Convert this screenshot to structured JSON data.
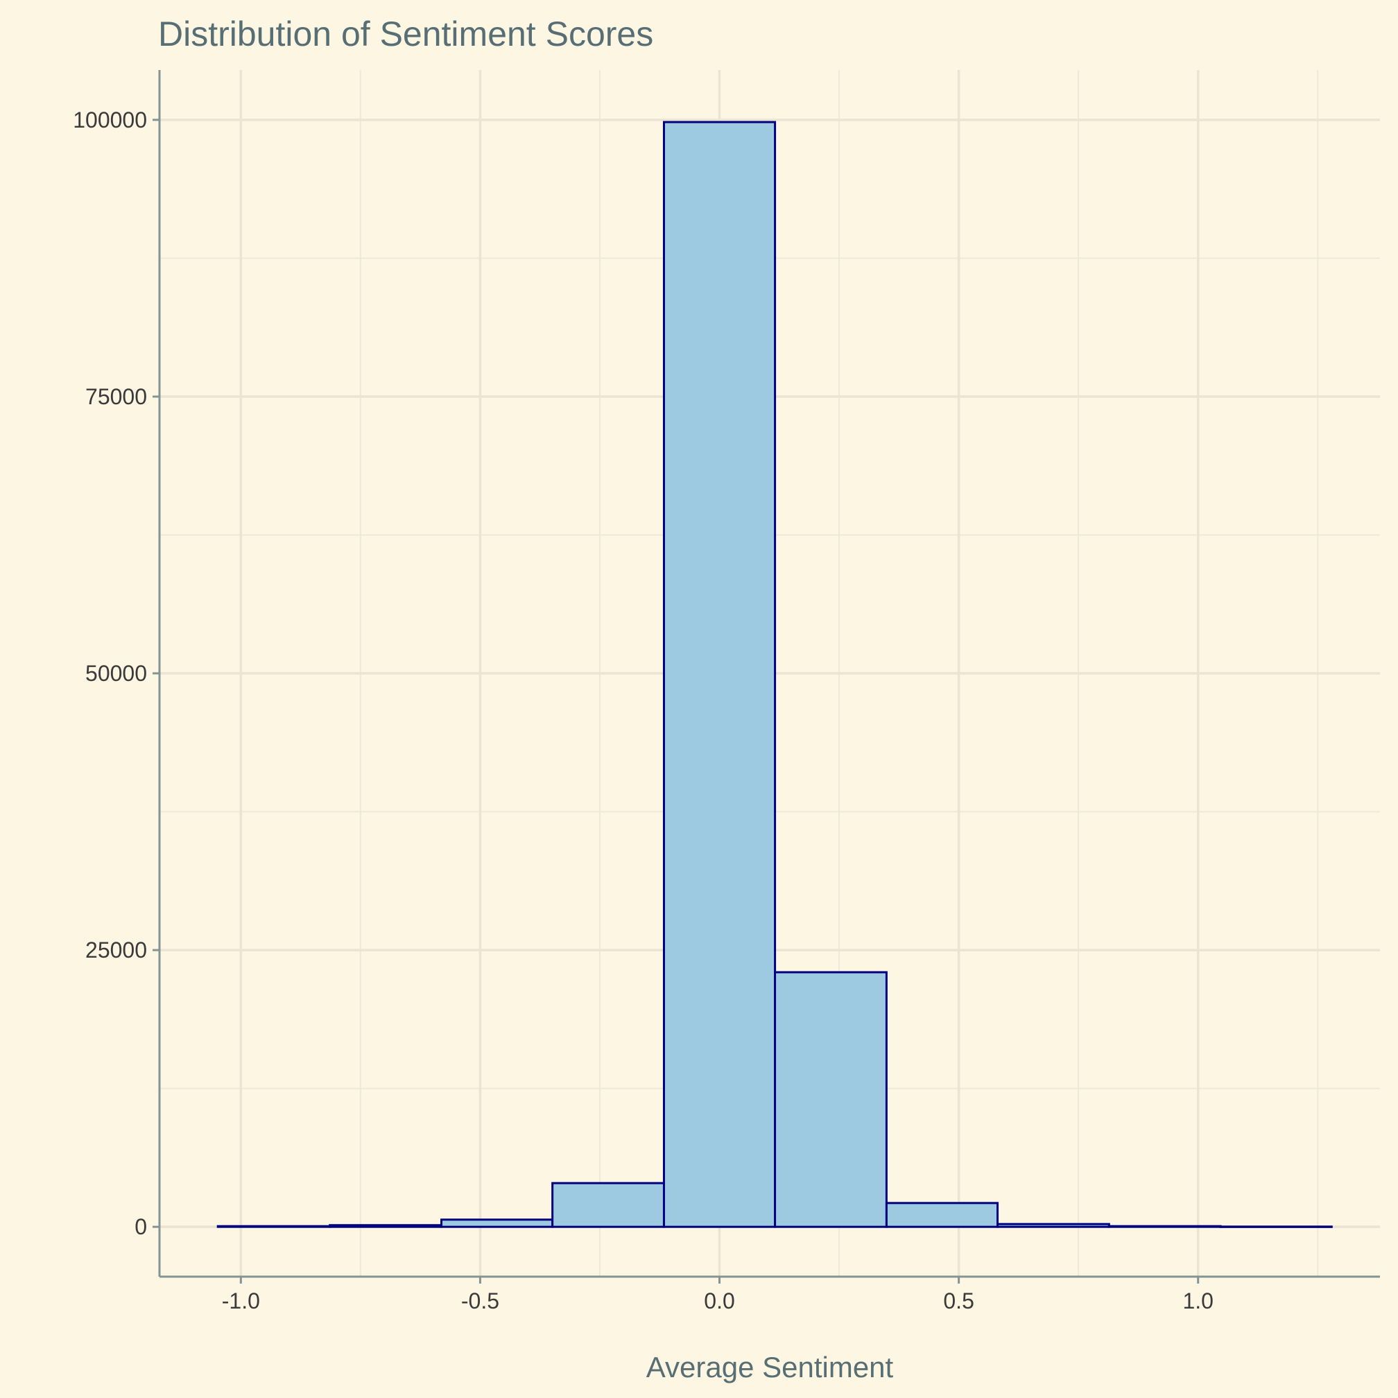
{
  "chart_data": {
    "type": "bar",
    "title": "Distribution of Sentiment Scores",
    "xlabel": "Average Sentiment",
    "ylabel": "",
    "xlim": [
      -1.17,
      1.38
    ],
    "ylim": [
      -4500,
      104500
    ],
    "x_ticks": [
      -1.0,
      -0.5,
      0.0,
      0.5,
      1.0
    ],
    "x_tick_labels": [
      "-1.0",
      "-0.5",
      "0.0",
      "0.5",
      "1.0"
    ],
    "y_ticks": [
      0,
      25000,
      50000,
      75000,
      100000
    ],
    "y_tick_labels": [
      "0",
      "25000",
      "50000",
      "75000",
      "100000"
    ],
    "grid": true,
    "bins": [
      {
        "x_start": -1.048,
        "x_end": -0.814,
        "value": 60
      },
      {
        "x_start": -0.814,
        "x_end": -0.581,
        "value": 150
      },
      {
        "x_start": -0.581,
        "x_end": -0.349,
        "value": 650
      },
      {
        "x_start": -0.349,
        "x_end": -0.116,
        "value": 3950
      },
      {
        "x_start": -0.116,
        "x_end": 0.116,
        "value": 99800
      },
      {
        "x_start": 0.116,
        "x_end": 0.349,
        "value": 23000
      },
      {
        "x_start": 0.349,
        "x_end": 0.581,
        "value": 2150
      },
      {
        "x_start": 0.581,
        "x_end": 0.814,
        "value": 250
      },
      {
        "x_start": 0.814,
        "x_end": 1.047,
        "value": 60
      },
      {
        "x_start": 1.047,
        "x_end": 1.279,
        "value": 20
      }
    ],
    "colors": {
      "bar_fill": "#9ecae1",
      "bar_outline": "#000080",
      "background": "#fdf6e3"
    }
  }
}
